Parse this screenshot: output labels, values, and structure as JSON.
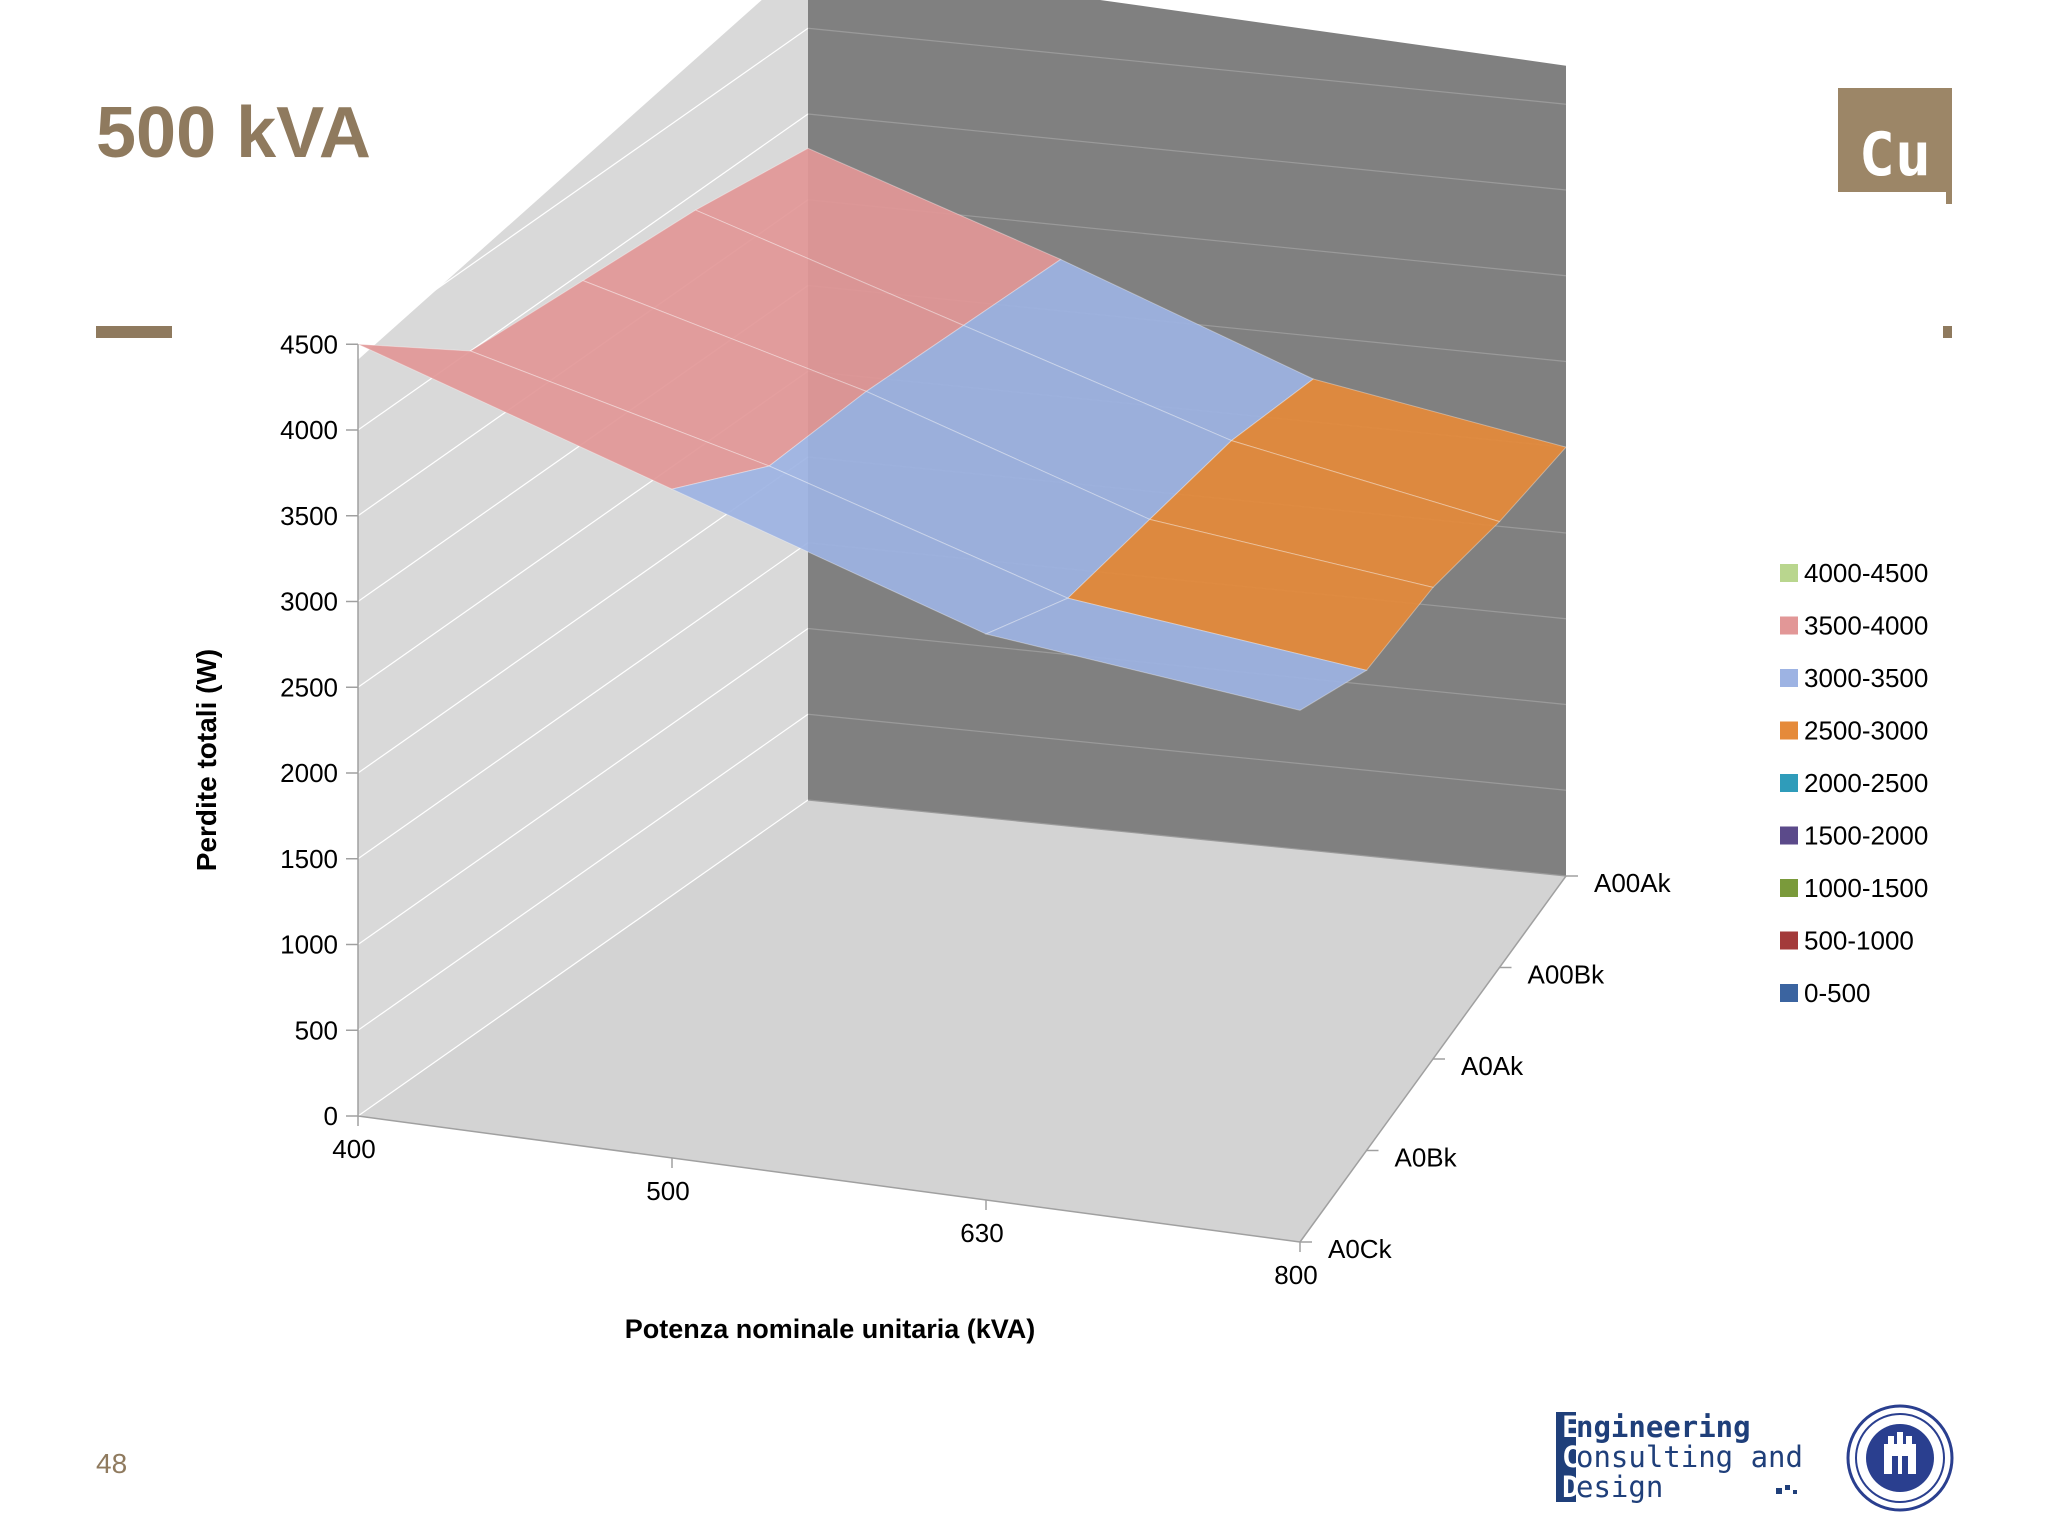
{
  "slide": {
    "title": "500 kVA",
    "element_symbol": "Cu",
    "page_number": "48",
    "accent_color": "#8f7a5e"
  },
  "logos": {
    "ecd_lines": [
      "Engineering",
      "Consulting and",
      "Design"
    ],
    "ecd_color": "#1f3f7a",
    "seal_icon": "university-seal-icon"
  },
  "chart_data": {
    "type": "surface",
    "x_categories": [
      "400",
      "500",
      "630",
      "800"
    ],
    "depth_categories": [
      "A0Ck",
      "A0Bk",
      "A0Ak",
      "A00Bk",
      "A00Ak"
    ],
    "values": [
      [
        4500,
        3900,
        3300,
        3100
      ],
      [
        4000,
        3550,
        3000,
        2800
      ],
      [
        3950,
        3500,
        2950,
        2750
      ],
      [
        3900,
        3400,
        2900,
        2600
      ],
      [
        3800,
        3300,
        2750,
        2500
      ]
    ],
    "zlabel": "Perdite totali (W)",
    "xlabel": "Potenza nominale  unitaria (kVA)",
    "z_ticks": [
      "0",
      "500",
      "1000",
      "1500",
      "2000",
      "2500",
      "3000",
      "3500",
      "4000",
      "4500"
    ],
    "zlim": [
      0,
      4500
    ],
    "grid": true,
    "legend_position": "right",
    "legend": [
      {
        "label": "4000-4500",
        "color": "#b9d68e"
      },
      {
        "label": "3500-4000",
        "color": "#e29797"
      },
      {
        "label": "3000-3500",
        "color": "#9db3e3"
      },
      {
        "label": "2500-3000",
        "color": "#e58a3a"
      },
      {
        "label": "2000-2500",
        "color": "#2f9cba"
      },
      {
        "label": "1500-2000",
        "color": "#5b4a8a"
      },
      {
        "label": "1000-1500",
        "color": "#7a9a3b"
      },
      {
        "label": "500-1000",
        "color": "#a33a3a"
      },
      {
        "label": "0-500",
        "color": "#3b64a0"
      }
    ],
    "colors": {
      "back_wall": "#808080",
      "side_wall": "#d9d9d9",
      "floor": "#d3d3d3"
    }
  }
}
